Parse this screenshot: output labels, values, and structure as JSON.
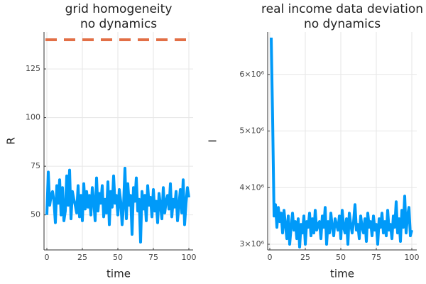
{
  "chart_data": [
    {
      "type": "line",
      "title": "grid homogeneity",
      "subtitle": "no dynamics",
      "xlabel": "time",
      "ylabel": "R",
      "xlim": [
        -2,
        103
      ],
      "xticks": [
        0,
        25,
        50,
        75,
        100
      ],
      "ylim": [
        32,
        144
      ],
      "yticks": [
        50,
        75,
        100,
        125
      ],
      "grid": true,
      "series": [
        {
          "color": "#009af9",
          "x": [
            0,
            1,
            2,
            3,
            4,
            5,
            6,
            7,
            8,
            9,
            10,
            11,
            12,
            13,
            14,
            15,
            16,
            17,
            18,
            19,
            20,
            21,
            22,
            23,
            24,
            25,
            26,
            27,
            28,
            29,
            30,
            31,
            32,
            33,
            34,
            35,
            36,
            37,
            38,
            39,
            40,
            41,
            42,
            43,
            44,
            45,
            46,
            47,
            48,
            49,
            50,
            51,
            52,
            53,
            54,
            55,
            56,
            57,
            58,
            59,
            60,
            61,
            62,
            63,
            64,
            65,
            66,
            67,
            68,
            69,
            70,
            71,
            72,
            73,
            74,
            75,
            76,
            77,
            78,
            79,
            80,
            81,
            82,
            83,
            84,
            85,
            86,
            87,
            88,
            89,
            90,
            91,
            92,
            93,
            94,
            95,
            96,
            97,
            98,
            99,
            100
          ],
          "values": [
            50,
            72,
            55,
            60,
            62,
            57,
            46,
            65,
            56,
            68,
            50,
            64,
            47,
            52,
            70,
            55,
            73,
            48,
            62,
            58,
            55,
            51,
            65,
            49,
            60,
            47,
            66,
            53,
            62,
            54,
            60,
            50,
            64,
            57,
            47,
            69,
            52,
            61,
            56,
            65,
            49,
            58,
            51,
            67,
            45,
            62,
            54,
            70,
            56,
            60,
            50,
            63,
            57,
            45,
            55,
            74,
            48,
            66,
            55,
            60,
            40,
            64,
            57,
            69,
            52,
            58,
            36,
            62,
            53,
            60,
            47,
            65,
            55,
            59,
            49,
            63,
            52,
            57,
            46,
            61,
            55,
            48,
            64,
            51,
            57,
            60,
            53,
            66,
            49,
            58,
            54,
            62,
            47,
            55,
            63,
            51,
            68,
            45,
            56,
            64,
            59
          ]
        },
        {
          "color": "#e26f46",
          "dashed": true,
          "x": [
            -1,
            102
          ],
          "values": [
            140,
            140
          ]
        }
      ]
    },
    {
      "type": "line",
      "title": "real income data deviation",
      "subtitle": "no dynamics",
      "xlabel": "time",
      "ylabel": "I",
      "xlim": [
        -1.5,
        103.5
      ],
      "xticks": [
        0,
        25,
        50,
        75,
        100
      ],
      "ylim": [
        2900000,
        6750000
      ],
      "yticks": [
        {
          "value": 3000000,
          "label": "3×10⁶"
        },
        {
          "value": 4000000,
          "label": "4×10⁶"
        },
        {
          "value": 5000000,
          "label": "5×10⁶"
        },
        {
          "value": 6000000,
          "label": "6×10⁶"
        }
      ],
      "grid": true,
      "series": [
        {
          "color": "#009af9",
          "x": [
            1,
            2,
            3,
            4,
            5,
            6,
            7,
            8,
            9,
            10,
            11,
            12,
            13,
            14,
            15,
            16,
            17,
            18,
            19,
            20,
            21,
            22,
            23,
            24,
            25,
            26,
            27,
            28,
            29,
            30,
            31,
            32,
            33,
            34,
            35,
            36,
            37,
            38,
            39,
            40,
            41,
            42,
            43,
            44,
            45,
            46,
            47,
            48,
            49,
            50,
            51,
            52,
            53,
            54,
            55,
            56,
            57,
            58,
            59,
            60,
            61,
            62,
            63,
            64,
            65,
            66,
            67,
            68,
            69,
            70,
            71,
            72,
            73,
            74,
            75,
            76,
            77,
            78,
            79,
            80,
            81,
            82,
            83,
            84,
            85,
            86,
            87,
            88,
            89,
            90,
            91,
            92,
            93,
            94,
            95,
            96,
            97,
            98,
            99,
            100
          ],
          "values": [
            6650000,
            5200000,
            3500000,
            3700000,
            3300000,
            3650000,
            3400000,
            3550000,
            3200000,
            3600000,
            3350000,
            3100000,
            3500000,
            3000000,
            3300000,
            3550000,
            3250000,
            3400000,
            3100000,
            3450000,
            2950000,
            3350000,
            3200000,
            3500000,
            3000000,
            3400000,
            3300000,
            3550000,
            3150000,
            3450000,
            3200000,
            3600000,
            3250000,
            3350000,
            3400000,
            3100000,
            3500000,
            3300000,
            3650000,
            3000000,
            3400000,
            3200000,
            3550000,
            3300000,
            3150000,
            3450000,
            3350000,
            3250000,
            3500000,
            3100000,
            3600000,
            3300000,
            3200000,
            3450000,
            3000000,
            3550000,
            3350000,
            3200000,
            3400000,
            3700000,
            3250000,
            3350000,
            3100000,
            3500000,
            3300000,
            3200000,
            3450000,
            3050000,
            3550000,
            3300000,
            3400000,
            3150000,
            3500000,
            3250000,
            3350000,
            3000000,
            3450000,
            3300000,
            3550000,
            3200000,
            3400000,
            3150000,
            3600000,
            3250000,
            3350000,
            3100000,
            3500000,
            3300000,
            3750000,
            3200000,
            3450000,
            3050000,
            3600000,
            3300000,
            3850000,
            3200000,
            3500000,
            3650000,
            3150000,
            3250000
          ]
        }
      ]
    }
  ]
}
